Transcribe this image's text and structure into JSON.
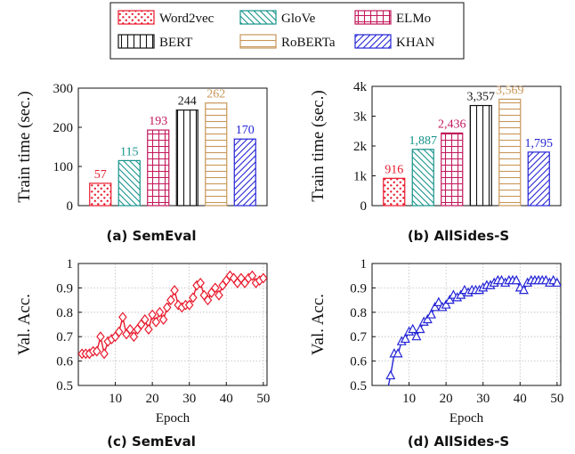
{
  "figure": {
    "captions": [
      "(a) SemEval",
      "(b) AllSides-S",
      "(c) SemEval",
      "(d) AllSides-S"
    ]
  },
  "legend": {
    "entries": [
      {
        "name": "Word2vec",
        "color": "#e8192c",
        "pattern": "dots"
      },
      {
        "name": "GloVe",
        "color": "#16938b",
        "pattern": "diag-left"
      },
      {
        "name": "ELMo",
        "color": "#c2185b",
        "pattern": "grid"
      },
      {
        "name": "BERT",
        "color": "#111111",
        "pattern": "vertical"
      },
      {
        "name": "RoBERTa",
        "color": "#c8965a",
        "pattern": "horizontal"
      },
      {
        "name": "KHAN",
        "color": "#2424d6",
        "pattern": "diag-right"
      }
    ]
  },
  "chart_data": [
    {
      "type": "bar",
      "caption": "(a) SemEval",
      "ylabel": "Train time (sec.)",
      "categories": [
        "Word2vec",
        "GloVe",
        "ELMo",
        "BERT",
        "RoBERTa",
        "KHAN"
      ],
      "values": [
        57,
        115,
        193,
        244,
        262,
        170
      ],
      "value_labels": [
        "57",
        "115",
        "193",
        "244",
        "262",
        "170"
      ],
      "ylim": [
        0,
        300
      ],
      "yticks": [
        0,
        100,
        200,
        300
      ],
      "ytick_labels": [
        "0",
        "100",
        "200",
        "300"
      ]
    },
    {
      "type": "bar",
      "caption": "(b) AllSides-S",
      "ylabel": "Train time (sec.)",
      "categories": [
        "Word2vec",
        "GloVe",
        "ELMo",
        "BERT",
        "RoBERTa",
        "KHAN"
      ],
      "values": [
        916,
        1887,
        2436,
        3357,
        3569,
        1795
      ],
      "value_labels": [
        "916",
        "1,887",
        "2,436",
        "3,357",
        "3,569",
        "1,795"
      ],
      "ylim": [
        0,
        4000
      ],
      "yticks": [
        0,
        1000,
        2000,
        3000,
        4000
      ],
      "ytick_labels": [
        "0",
        "1k",
        "2k",
        "3k",
        "4k"
      ]
    },
    {
      "type": "line",
      "caption": "(c) SemEval",
      "xlabel": "Epoch",
      "ylabel": "Val. Acc.",
      "xlim": [
        0,
        51
      ],
      "ylim": [
        0.5,
        1.0
      ],
      "xticks": [
        10,
        20,
        30,
        40,
        50
      ],
      "yticks": [
        0.5,
        0.6,
        0.7,
        0.8,
        0.9,
        1.0
      ],
      "ytick_labels": [
        "0.5",
        "0.6",
        "0.7",
        "0.8",
        "0.9",
        "1"
      ],
      "color": "#e8192c",
      "marker": "diamond",
      "x": [
        1,
        2,
        3,
        4,
        5,
        6,
        7,
        8,
        9,
        10,
        11,
        12,
        13,
        14,
        15,
        16,
        17,
        18,
        19,
        20,
        21,
        22,
        23,
        24,
        25,
        26,
        27,
        28,
        29,
        30,
        31,
        32,
        33,
        34,
        35,
        36,
        37,
        38,
        39,
        40,
        41,
        42,
        43,
        44,
        45,
        46,
        47,
        48,
        49,
        50
      ],
      "values": [
        0.63,
        0.63,
        0.63,
        0.64,
        0.64,
        0.7,
        0.63,
        0.68,
        0.69,
        0.7,
        0.72,
        0.78,
        0.71,
        0.73,
        0.7,
        0.73,
        0.75,
        0.77,
        0.73,
        0.79,
        0.76,
        0.8,
        0.77,
        0.82,
        0.85,
        0.89,
        0.83,
        0.82,
        0.83,
        0.83,
        0.86,
        0.91,
        0.92,
        0.87,
        0.85,
        0.88,
        0.9,
        0.87,
        0.91,
        0.93,
        0.95,
        0.94,
        0.92,
        0.94,
        0.92,
        0.94,
        0.95,
        0.92,
        0.93,
        0.94
      ]
    },
    {
      "type": "line",
      "caption": "(d) AllSides-S",
      "xlabel": "Epoch",
      "ylabel": "Val. Acc.",
      "xlim": [
        0,
        51
      ],
      "ylim": [
        0.5,
        1.0
      ],
      "xticks": [
        10,
        20,
        30,
        40,
        50
      ],
      "yticks": [
        0.5,
        0.6,
        0.7,
        0.8,
        0.9,
        1.0
      ],
      "ytick_labels": [
        "0.5",
        "0.6",
        "0.7",
        "0.8",
        "0.9",
        "1"
      ],
      "color": "#2424d6",
      "marker": "triangle",
      "x": [
        4,
        5,
        6,
        7,
        8,
        9,
        10,
        11,
        12,
        13,
        14,
        15,
        16,
        17,
        18,
        19,
        20,
        21,
        22,
        23,
        24,
        25,
        26,
        27,
        28,
        29,
        30,
        31,
        32,
        33,
        34,
        35,
        36,
        37,
        38,
        39,
        40,
        41,
        42,
        43,
        44,
        45,
        46,
        47,
        48,
        49,
        50
      ],
      "values": [
        0.47,
        0.54,
        0.63,
        0.63,
        0.68,
        0.69,
        0.72,
        0.73,
        0.7,
        0.73,
        0.76,
        0.77,
        0.79,
        0.82,
        0.84,
        0.82,
        0.83,
        0.85,
        0.87,
        0.86,
        0.87,
        0.89,
        0.88,
        0.89,
        0.89,
        0.89,
        0.9,
        0.91,
        0.91,
        0.92,
        0.93,
        0.93,
        0.92,
        0.93,
        0.93,
        0.93,
        0.9,
        0.89,
        0.92,
        0.93,
        0.93,
        0.93,
        0.93,
        0.93,
        0.92,
        0.93,
        0.92
      ]
    }
  ]
}
